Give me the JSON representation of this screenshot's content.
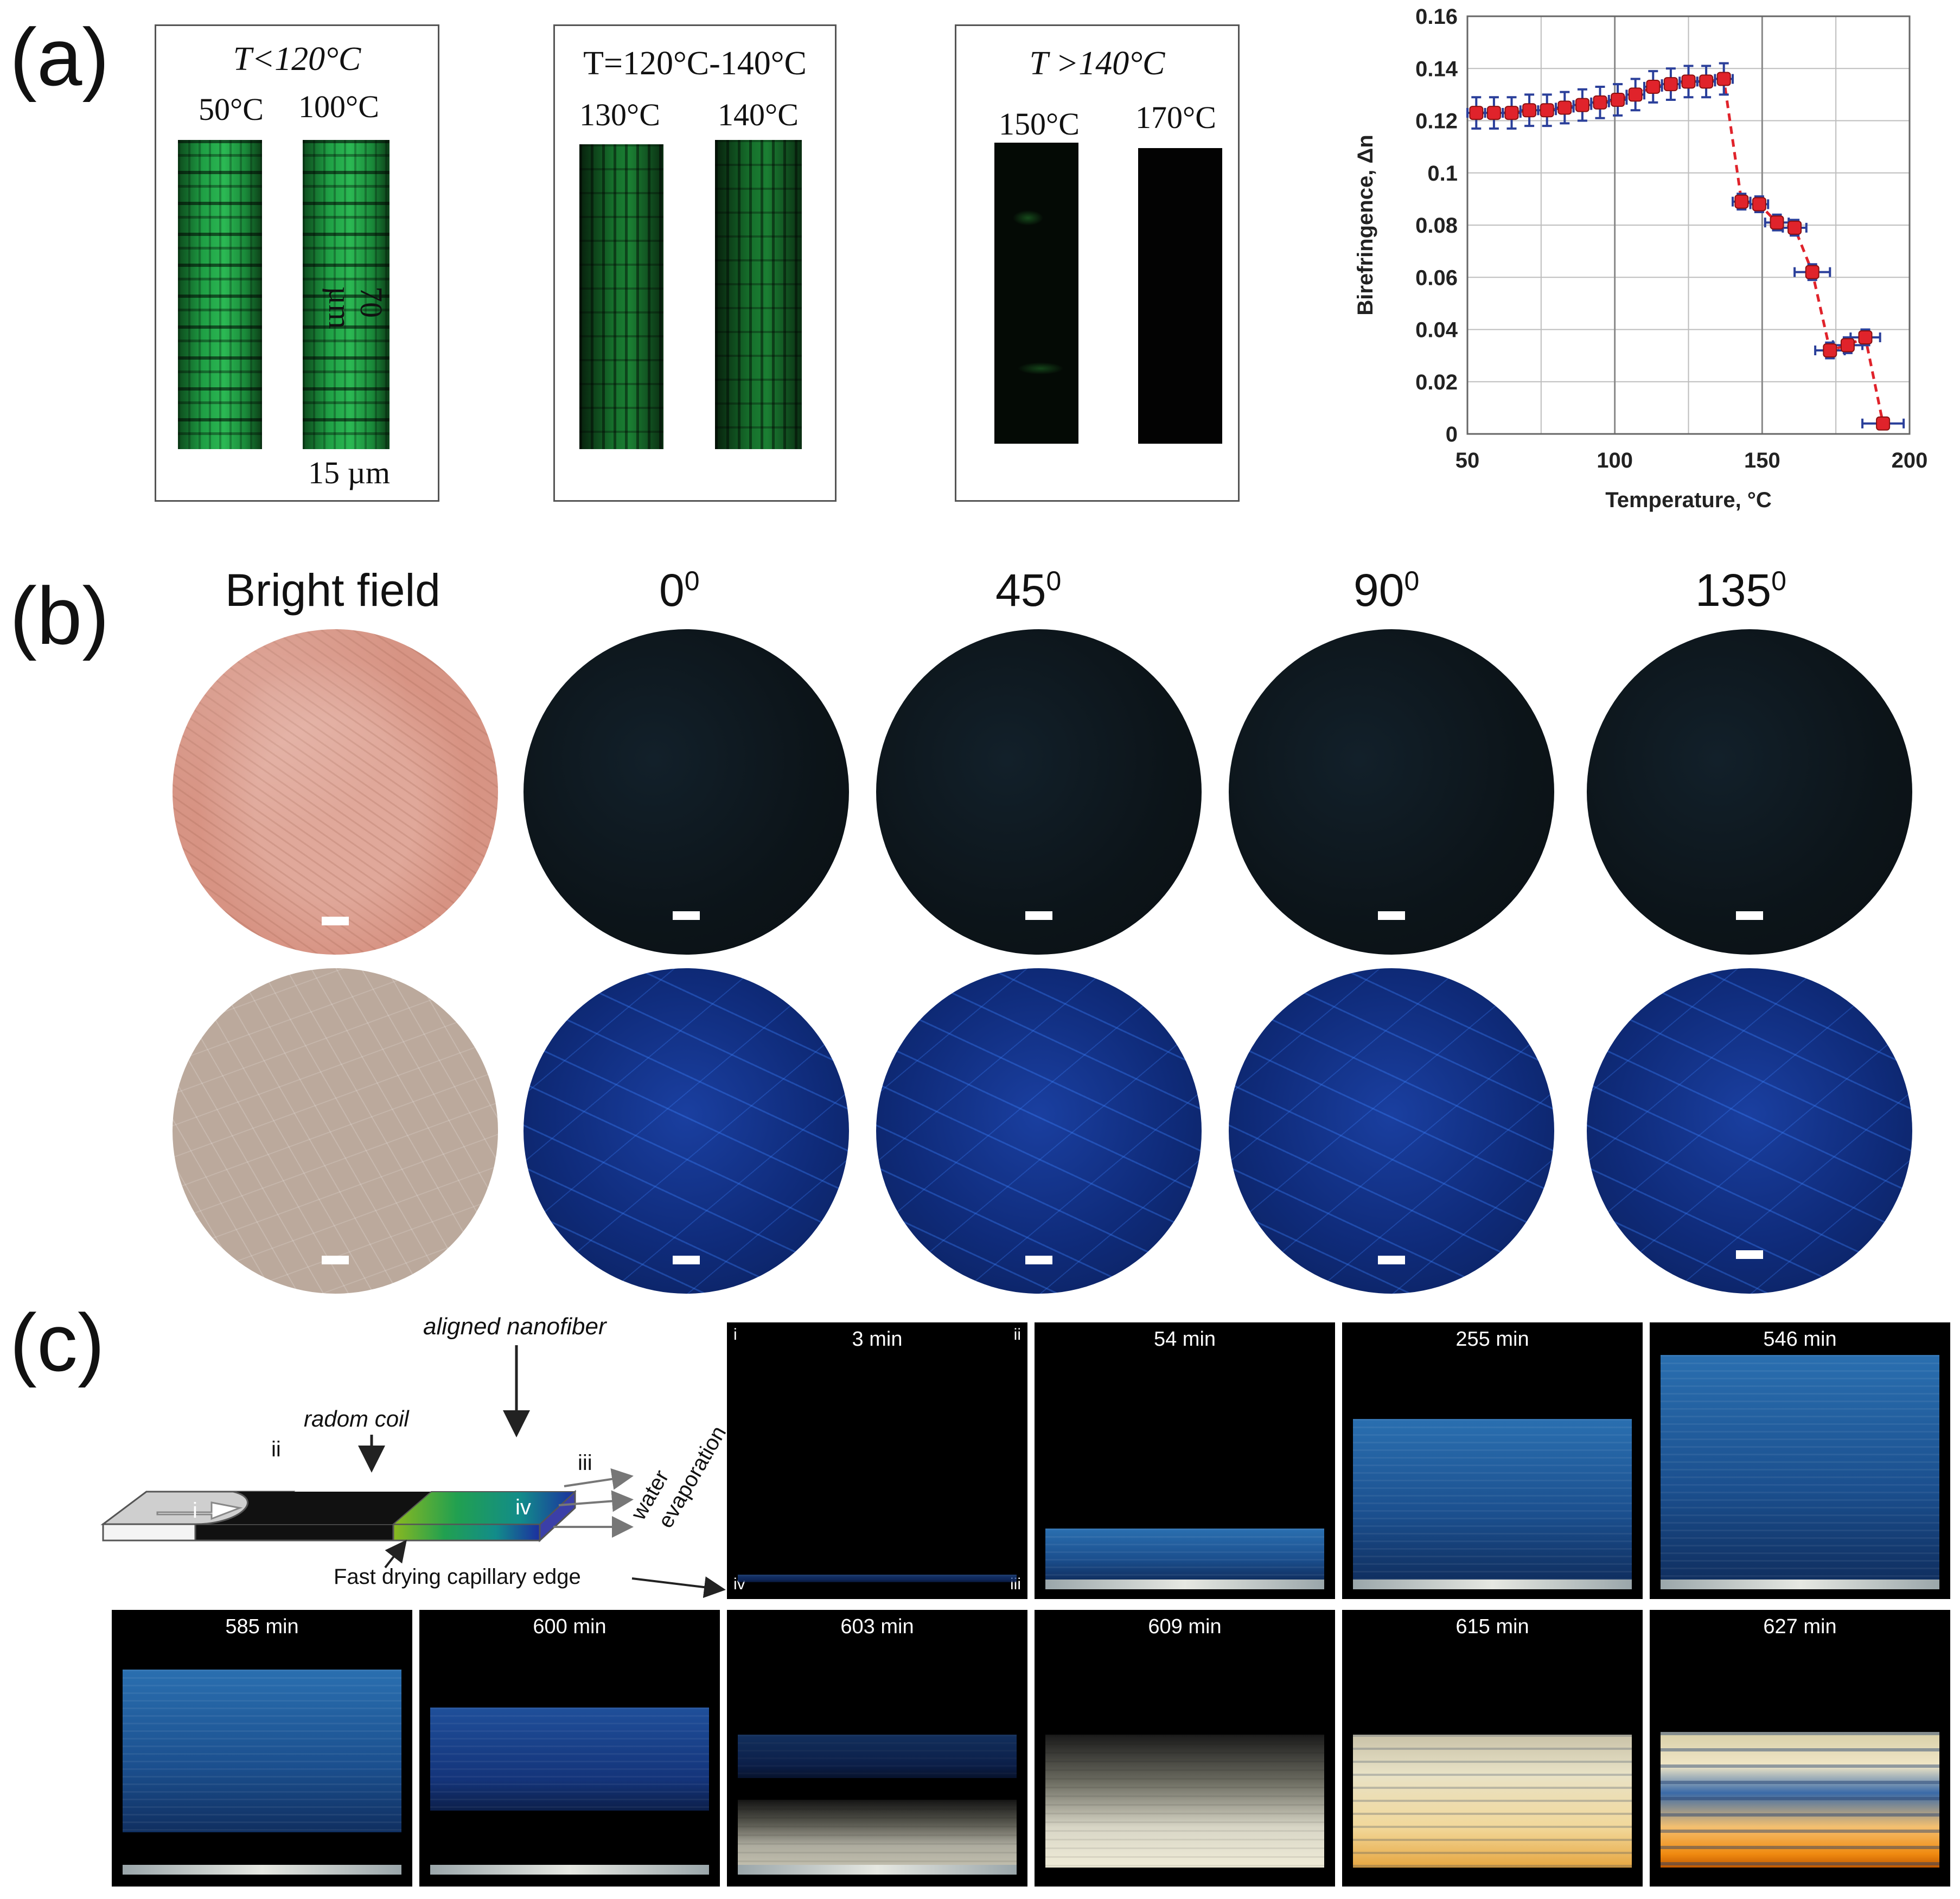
{
  "panel_labels": {
    "a": "(a)",
    "b": "(b)",
    "c": "(c)"
  },
  "panel_a": {
    "frames": [
      {
        "title": "T<120°C",
        "labels": [
          "50°C",
          "100°C"
        ],
        "scale_v": "70 µm",
        "scale_h": "15 µm"
      },
      {
        "title": "T=120°C-140°C",
        "labels": [
          "130°C",
          "140°C"
        ]
      },
      {
        "title": "T >140°C",
        "labels": [
          "150°C",
          "170°C"
        ]
      }
    ]
  },
  "chart_data": {
    "type": "scatter",
    "xlabel": "Temperature, °C",
    "ylabel": "Birefringence, Δn",
    "xlim": [
      50,
      200
    ],
    "ylim": [
      0,
      0.16
    ],
    "xticks": [
      50,
      100,
      150,
      200
    ],
    "yticks": [
      0,
      0.02,
      0.04,
      0.06,
      0.08,
      0.1,
      0.12,
      0.14,
      0.16
    ],
    "ytick_labels": [
      "0",
      "0.02",
      "0.04",
      "0.06",
      "0.08",
      "0.1",
      "0.12",
      "0.14",
      "0.16"
    ],
    "grid": true,
    "color": "#e0232b",
    "errorbar_color": "#2a3f9a",
    "series": [
      {
        "x": [
          53,
          59,
          65,
          71,
          77,
          83,
          89,
          95,
          101,
          107,
          113,
          119,
          125,
          131,
          137,
          143,
          149,
          155,
          161,
          167,
          173,
          179,
          185,
          191
        ],
        "y": [
          0.123,
          0.123,
          0.123,
          0.124,
          0.124,
          0.125,
          0.126,
          0.127,
          0.128,
          0.13,
          0.133,
          0.134,
          0.135,
          0.135,
          0.136,
          0.089,
          0.088,
          0.081,
          0.079,
          0.062,
          0.032,
          0.034,
          0.037,
          0.004
        ],
        "yerr": [
          0.006,
          0.006,
          0.006,
          0.006,
          0.006,
          0.006,
          0.006,
          0.006,
          0.006,
          0.006,
          0.006,
          0.006,
          0.006,
          0.006,
          0.006,
          0.003,
          0.003,
          0.003,
          0.003,
          0.003,
          0.003,
          0.003,
          0.003,
          0.002
        ],
        "xerr": [
          3,
          3,
          3,
          3,
          3,
          3,
          3,
          3,
          3,
          3,
          3,
          3,
          3,
          3,
          3,
          3,
          3,
          4,
          4,
          6,
          5,
          5,
          5,
          7
        ]
      }
    ]
  },
  "panel_b": {
    "headers": [
      "Bright field",
      "0",
      "45",
      "90",
      "135"
    ],
    "superscript": "0"
  },
  "panel_c": {
    "diagram": {
      "aligned": "aligned nanofiber",
      "coil": "radom coil",
      "ii": "ii",
      "iii": "iii",
      "i": "i",
      "iv": "iv",
      "water": "water",
      "evap": "evaporation",
      "edge": "Fast drying capillary edge"
    },
    "corner": {
      "tl": "i",
      "tr": "ii",
      "bl": "iv",
      "br": "iii"
    },
    "times_top": [
      "3 min",
      "54 min",
      "255 min",
      "546 min"
    ],
    "times_bottom": [
      "585 min",
      "600 min",
      "603 min",
      "609 min",
      "615 min",
      "627 min"
    ]
  }
}
